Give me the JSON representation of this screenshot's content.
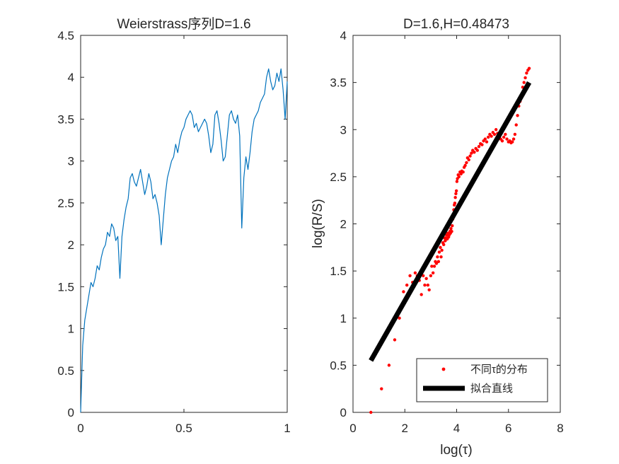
{
  "chart_data": [
    {
      "type": "line",
      "title": "Weierstrass序列D=1.6",
      "xlabel": "",
      "ylabel": "",
      "xlim": [
        0,
        1
      ],
      "ylim": [
        0,
        4.5
      ],
      "xticks": [
        0,
        0.5,
        1
      ],
      "xtick_labels": [
        "0",
        "0.5",
        "1"
      ],
      "yticks": [
        0,
        0.5,
        1,
        1.5,
        2,
        2.5,
        3,
        3.5,
        4,
        4.5
      ],
      "ytick_labels": [
        "0",
        "0.5",
        "1",
        "1.5",
        "2",
        "2.5",
        "3",
        "3.5",
        "4",
        "4.5"
      ],
      "grid": false,
      "series": [
        {
          "color": "#0072BD",
          "x": [
            0,
            0.01,
            0.02,
            0.03,
            0.04,
            0.05,
            0.06,
            0.07,
            0.08,
            0.09,
            0.1,
            0.11,
            0.12,
            0.13,
            0.14,
            0.15,
            0.16,
            0.17,
            0.18,
            0.19,
            0.2,
            0.21,
            0.22,
            0.23,
            0.24,
            0.25,
            0.26,
            0.27,
            0.28,
            0.29,
            0.3,
            0.31,
            0.32,
            0.33,
            0.34,
            0.35,
            0.36,
            0.37,
            0.38,
            0.39,
            0.4,
            0.41,
            0.42,
            0.43,
            0.44,
            0.45,
            0.46,
            0.47,
            0.48,
            0.49,
            0.5,
            0.51,
            0.52,
            0.53,
            0.54,
            0.55,
            0.56,
            0.57,
            0.58,
            0.59,
            0.6,
            0.61,
            0.62,
            0.63,
            0.64,
            0.65,
            0.66,
            0.67,
            0.68,
            0.69,
            0.7,
            0.71,
            0.72,
            0.73,
            0.74,
            0.75,
            0.76,
            0.77,
            0.78,
            0.79,
            0.8,
            0.81,
            0.82,
            0.83,
            0.84,
            0.85,
            0.86,
            0.87,
            0.88,
            0.89,
            0.9,
            0.91,
            0.92,
            0.93,
            0.94,
            0.95,
            0.96,
            0.97,
            0.98,
            0.99,
            1.0
          ],
          "y": [
            0,
            0.8,
            1.1,
            1.25,
            1.4,
            1.55,
            1.5,
            1.6,
            1.75,
            1.7,
            1.85,
            1.95,
            2.0,
            2.15,
            2.1,
            2.25,
            2.2,
            2.05,
            2.1,
            1.6,
            2.1,
            2.3,
            2.45,
            2.55,
            2.8,
            2.85,
            2.75,
            2.7,
            2.8,
            2.9,
            2.75,
            2.6,
            2.7,
            2.85,
            2.75,
            2.55,
            2.6,
            2.5,
            2.35,
            2.0,
            2.3,
            2.6,
            2.8,
            2.9,
            3.0,
            3.05,
            3.2,
            3.1,
            3.25,
            3.35,
            3.4,
            3.5,
            3.55,
            3.6,
            3.55,
            3.4,
            3.45,
            3.35,
            3.4,
            3.45,
            3.5,
            3.45,
            3.3,
            3.1,
            3.2,
            3.55,
            3.6,
            3.45,
            3.25,
            3.0,
            3.05,
            3.3,
            3.55,
            3.6,
            3.5,
            3.45,
            3.55,
            3.3,
            2.2,
            2.8,
            3.05,
            2.9,
            3.1,
            3.35,
            3.5,
            3.55,
            3.6,
            3.7,
            3.75,
            3.8,
            4.0,
            4.1,
            3.95,
            3.85,
            3.9,
            4.05,
            3.95,
            4.1,
            3.85,
            3.5,
            3.95
          ]
        }
      ]
    },
    {
      "type": "scatter",
      "title": "D=1.6,H=0.48473",
      "xlabel": "log(τ)",
      "ylabel": "log(R/S)",
      "xlim": [
        0,
        8
      ],
      "ylim": [
        0,
        4
      ],
      "xticks": [
        0,
        2,
        4,
        6,
        8
      ],
      "xtick_labels": [
        "0",
        "2",
        "4",
        "6",
        "8"
      ],
      "yticks": [
        0,
        0.5,
        1,
        1.5,
        2,
        2.5,
        3,
        3.5,
        4
      ],
      "ytick_labels": [
        "0",
        "0.5",
        "1",
        "1.5",
        "2",
        "2.5",
        "3",
        "3.5",
        "4"
      ],
      "grid": false,
      "legend": {
        "placement": "bottom-right",
        "entries": [
          "不同τ的分布",
          "拟合直线"
        ]
      },
      "series": [
        {
          "name": "不同τ的分布",
          "color": "#FF0000",
          "marker": "point",
          "x": [
            0.69,
            1.1,
            1.39,
            1.61,
            1.79,
            1.95,
            2.08,
            2.2,
            2.3,
            2.4,
            2.48,
            2.56,
            2.64,
            2.71,
            2.77,
            2.83,
            2.89,
            2.94,
            3.0,
            3.04,
            3.09,
            3.14,
            3.18,
            3.22,
            3.26,
            3.3,
            3.33,
            3.37,
            3.4,
            3.43,
            3.47,
            3.5,
            3.53,
            3.56,
            3.58,
            3.61,
            3.64,
            3.66,
            3.69,
            3.71,
            3.74,
            3.76,
            3.78,
            3.81,
            3.83,
            3.85,
            3.87,
            3.89,
            3.91,
            3.93,
            3.95,
            3.97,
            3.99,
            4.01,
            4.03,
            4.06,
            4.09,
            4.13,
            4.17,
            4.2,
            4.25,
            4.29,
            4.33,
            4.38,
            4.42,
            4.47,
            4.52,
            4.57,
            4.62,
            4.68,
            4.74,
            4.8,
            4.86,
            4.92,
            4.98,
            5.04,
            5.1,
            5.16,
            5.22,
            5.28,
            5.34,
            5.4,
            5.46,
            5.52,
            5.58,
            5.64,
            5.7,
            5.76,
            5.82,
            5.88,
            5.94,
            6.0,
            6.05,
            6.1,
            6.15,
            6.2,
            6.25,
            6.3,
            6.35,
            6.4,
            6.45,
            6.5,
            6.55,
            6.6,
            6.65,
            6.7,
            6.75,
            6.8
          ],
          "y": [
            0.0,
            0.25,
            0.5,
            0.77,
            1.0,
            1.28,
            1.35,
            1.45,
            1.38,
            1.48,
            1.45,
            1.4,
            1.25,
            1.45,
            1.35,
            1.42,
            1.35,
            1.3,
            1.45,
            1.55,
            1.48,
            1.55,
            1.6,
            1.58,
            1.65,
            1.6,
            1.7,
            1.75,
            1.65,
            1.72,
            1.8,
            1.78,
            1.85,
            1.82,
            1.85,
            1.88,
            1.84,
            1.9,
            1.86,
            1.88,
            1.92,
            1.9,
            1.95,
            1.92,
            1.98,
            2.05,
            2.1,
            2.15,
            2.2,
            2.22,
            2.28,
            2.32,
            2.35,
            2.45,
            2.48,
            2.52,
            2.5,
            2.55,
            2.53,
            2.56,
            2.55,
            2.6,
            2.62,
            2.65,
            2.7,
            2.68,
            2.72,
            2.75,
            2.78,
            2.76,
            2.8,
            2.78,
            2.82,
            2.85,
            2.84,
            2.88,
            2.9,
            2.87,
            2.92,
            2.95,
            2.93,
            2.97,
            2.95,
            3.0,
            2.96,
            2.92,
            2.9,
            2.88,
            2.92,
            2.95,
            2.9,
            2.87,
            2.88,
            2.86,
            2.87,
            2.9,
            2.95,
            3.05,
            3.15,
            3.25,
            3.3,
            3.35,
            3.45,
            3.5,
            3.55,
            3.6,
            3.63,
            3.65
          ]
        },
        {
          "name": "拟合直线",
          "color": "#000000",
          "marker": "line",
          "x": [
            0.69,
            6.8
          ],
          "y": [
            0.55,
            3.5
          ]
        }
      ]
    }
  ]
}
